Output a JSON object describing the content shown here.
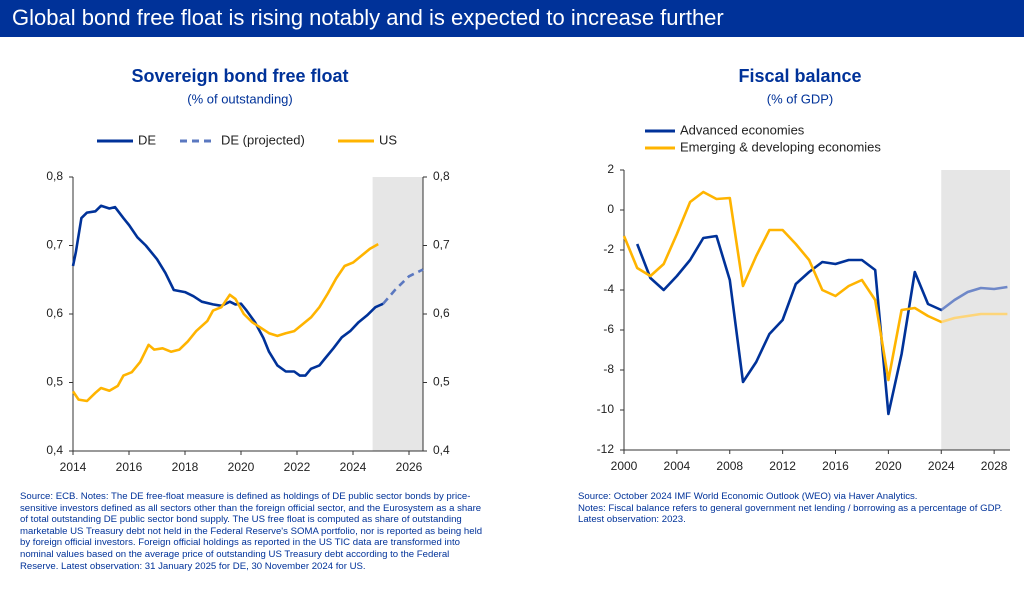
{
  "header": {
    "title": "Global bond free float is rising notably and is expected to increase further"
  },
  "chart_data": [
    {
      "type": "line",
      "title": "Sovereign bond free float",
      "subtitle": "(% of outstanding)",
      "xlim": [
        2014,
        2026.5
      ],
      "xticks": [
        2014,
        2016,
        2018,
        2020,
        2022,
        2024,
        2026
      ],
      "ylim": [
        0.4,
        0.8
      ],
      "yticks": [
        {
          "value": 0.4,
          "label": "0,4"
        },
        {
          "value": 0.5,
          "label": "0,5"
        },
        {
          "value": 0.6,
          "label": "0,6"
        },
        {
          "value": 0.7,
          "label": "0,7"
        },
        {
          "value": 0.8,
          "label": "0,8"
        }
      ],
      "right_axis": true,
      "shaded_x": [
        2024.7,
        2026.5
      ],
      "legend": "top-horizontal",
      "series": [
        {
          "name": "DE",
          "color": "#003299",
          "dash": false,
          "x": [
            2014.0,
            2014.1,
            2014.3,
            2014.5,
            2014.8,
            2015.0,
            2015.3,
            2015.5,
            2015.8,
            2016.0,
            2016.3,
            2016.6,
            2017.0,
            2017.3,
            2017.6,
            2018.0,
            2018.3,
            2018.6,
            2019.0,
            2019.3,
            2019.6,
            2019.8,
            2020.0,
            2020.2,
            2020.5,
            2020.8,
            2021.0,
            2021.3,
            2021.6,
            2021.9,
            2022.1,
            2022.3,
            2022.5,
            2022.8,
            2023.0,
            2023.3,
            2023.6,
            2023.9,
            2024.2,
            2024.5,
            2024.8,
            2025.08
          ],
          "values": [
            0.67,
            0.69,
            0.74,
            0.748,
            0.75,
            0.758,
            0.754,
            0.756,
            0.74,
            0.73,
            0.712,
            0.7,
            0.68,
            0.66,
            0.635,
            0.632,
            0.626,
            0.618,
            0.614,
            0.612,
            0.618,
            0.614,
            0.615,
            0.605,
            0.588,
            0.565,
            0.545,
            0.525,
            0.516,
            0.516,
            0.51,
            0.51,
            0.52,
            0.525,
            0.535,
            0.55,
            0.566,
            0.575,
            0.588,
            0.598,
            0.61,
            0.615
          ]
        },
        {
          "name": "DE (projected)",
          "color": "#5b78c0",
          "dash": true,
          "x": [
            2025.08,
            2025.5,
            2026.0,
            2026.5
          ],
          "values": [
            0.615,
            0.635,
            0.655,
            0.665
          ]
        },
        {
          "name": "US",
          "color": "#ffb400",
          "dash": false,
          "x": [
            2014.0,
            2014.2,
            2014.5,
            2014.8,
            2015.0,
            2015.3,
            2015.6,
            2015.8,
            2016.1,
            2016.4,
            2016.7,
            2016.9,
            2017.2,
            2017.5,
            2017.8,
            2018.1,
            2018.4,
            2018.8,
            2019.0,
            2019.3,
            2019.6,
            2019.8,
            2020.1,
            2020.4,
            2020.7,
            2021.0,
            2021.3,
            2021.6,
            2021.9,
            2022.2,
            2022.5,
            2022.8,
            2023.1,
            2023.4,
            2023.7,
            2024.0,
            2024.3,
            2024.6,
            2024.9
          ],
          "values": [
            0.487,
            0.475,
            0.473,
            0.485,
            0.492,
            0.488,
            0.495,
            0.51,
            0.515,
            0.53,
            0.555,
            0.548,
            0.55,
            0.545,
            0.548,
            0.56,
            0.575,
            0.59,
            0.605,
            0.61,
            0.628,
            0.622,
            0.6,
            0.588,
            0.58,
            0.572,
            0.568,
            0.572,
            0.575,
            0.585,
            0.595,
            0.61,
            0.63,
            0.652,
            0.67,
            0.675,
            0.685,
            0.695,
            0.702
          ]
        }
      ],
      "notes": [
        "Source: ECB. Notes: The DE free-float measure is defined as holdings of DE public sector bonds by price-sensitive investors defined as all sectors other than the foreign official sector, and the Eurosystem as a share of total outstanding DE public sector bond supply. The US free float is computed as share of outstanding marketable US Treasury debt not held in the Federal Reserve's SOMA portfolio, nor is reported as being held by foreign official investors. Foreign official holdings as reported in the US TIC data are transformed into nominal values based on the average price of outstanding US Treasury debt according to the Federal Reserve. Latest observation: 31 January 2025 for DE, 30 November 2024 for US."
      ]
    },
    {
      "type": "line",
      "title": "Fiscal balance",
      "subtitle": "(% of GDP)",
      "xlim": [
        2000,
        2029.2
      ],
      "xticks": [
        2000,
        2004,
        2008,
        2012,
        2016,
        2020,
        2024,
        2028
      ],
      "ylim": [
        -12,
        2
      ],
      "yticks": [
        -12,
        -10,
        -8,
        -6,
        -4,
        -2,
        0,
        2
      ],
      "right_axis": false,
      "shaded_x": [
        2024,
        2029.2
      ],
      "projected_from": 2024,
      "legend": "top-left",
      "x": [
        2000,
        2001,
        2002,
        2003,
        2004,
        2005,
        2006,
        2007,
        2008,
        2009,
        2010,
        2011,
        2012,
        2013,
        2014,
        2015,
        2016,
        2017,
        2018,
        2019,
        2020,
        2021,
        2022,
        2023,
        2024,
        2025,
        2026,
        2027,
        2028,
        2029
      ],
      "series": [
        {
          "name": "Advanced economies",
          "color": "#003299",
          "projected_color": "#6f88c8",
          "values": [
            null,
            -1.7,
            -3.4,
            -4.0,
            -3.3,
            -2.5,
            -1.4,
            -1.3,
            -3.5,
            -8.6,
            -7.6,
            -6.2,
            -5.5,
            -3.7,
            -3.1,
            -2.6,
            -2.7,
            -2.5,
            -2.5,
            -3.0,
            -10.2,
            -7.2,
            -3.1,
            -4.7,
            -5.0,
            -4.5,
            -4.1,
            -3.9,
            -3.95,
            -3.85
          ]
        },
        {
          "name": "Emerging & developing economies",
          "color": "#ffb400",
          "projected_color": "#fdd57a",
          "values": [
            -1.3,
            -2.9,
            -3.3,
            -2.7,
            -1.2,
            0.4,
            0.9,
            0.55,
            0.6,
            -3.8,
            -2.3,
            -1.0,
            -1.0,
            -1.7,
            -2.5,
            -4.0,
            -4.3,
            -3.8,
            -3.5,
            -4.5,
            -8.5,
            -5.0,
            -4.9,
            -5.3,
            -5.6,
            -5.4,
            -5.3,
            -5.2,
            -5.2,
            -5.2
          ]
        }
      ],
      "notes": [
        "Source: October 2024 IMF World Economic Outlook (WEO) via Haver Analytics.",
        "Notes: Fiscal balance refers to general government net lending / borrowing as a percentage of GDP.",
        "Latest observation: 2023."
      ]
    }
  ]
}
